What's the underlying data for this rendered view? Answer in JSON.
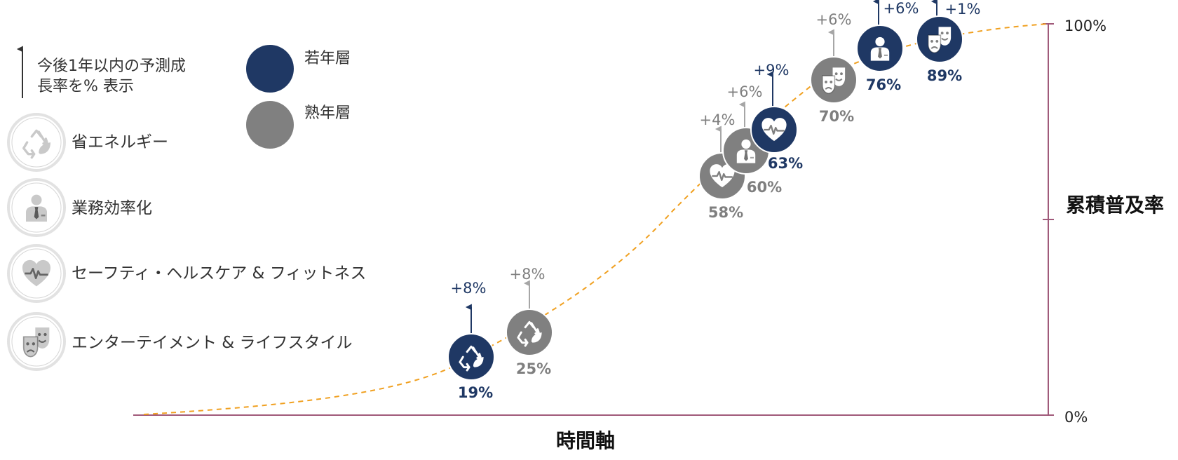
{
  "chart_data": {
    "type": "scatter",
    "xlabel": "時間軸",
    "ylabel": "累積普及率",
    "y_ticks": [
      "100%",
      "0%"
    ],
    "ylim": [
      0,
      100
    ],
    "trend_curve": "S-curve (dashed)",
    "arrow_note": "今後1年以内の予測成長率を% 表示",
    "arrow_note_lines": [
      "今後1年以内の予測成",
      "長率を% 表示"
    ],
    "series": [
      {
        "name": "若年層",
        "color": "#1f3864"
      },
      {
        "name": "熟年層",
        "color": "#808080"
      }
    ],
    "categories": [
      {
        "name": "省エネルギー",
        "icon": "recycle-leaf-icon"
      },
      {
        "name": "業務効率化",
        "icon": "businessman-icon"
      },
      {
        "name": "セーフティ・ヘルスケア & フィットネス",
        "icon": "heart-pulse-icon"
      },
      {
        "name": "エンターテイメント & ライフスタイル",
        "icon": "theater-masks-icon"
      }
    ],
    "points": [
      {
        "series": "若年層",
        "category": "省エネルギー",
        "value": "19%",
        "growth": "+8%",
        "y": 19
      },
      {
        "series": "熟年層",
        "category": "省エネルギー",
        "value": "25%",
        "growth": "+8%",
        "y": 25
      },
      {
        "series": "熟年層",
        "category": "セーフティ・ヘルスケア & フィットネス",
        "value": "58%",
        "growth": "+4%",
        "y": 58
      },
      {
        "series": "熟年層",
        "category": "業務効率化",
        "value": "60%",
        "growth": "+6%",
        "y": 60
      },
      {
        "series": "若年層",
        "category": "セーフティ・ヘルスケア & フィットネス",
        "value": "63%",
        "growth": "+9%",
        "y": 63
      },
      {
        "series": "熟年層",
        "category": "エンターテイメント & ライフスタイル",
        "value": "70%",
        "growth": "+6%",
        "y": 70
      },
      {
        "series": "若年層",
        "category": "業務効率化",
        "value": "76%",
        "growth": "+6%",
        "y": 76
      },
      {
        "series": "若年層",
        "category": "エンターテイメント & ライフスタイル",
        "value": "89%",
        "growth": "+1%",
        "y": 89
      }
    ]
  },
  "colors": {
    "young": "#1f3864",
    "senior": "#808080",
    "legend_icon": "#c9c9c9",
    "axis": "#a05a7a",
    "curve": "#f0a020"
  }
}
